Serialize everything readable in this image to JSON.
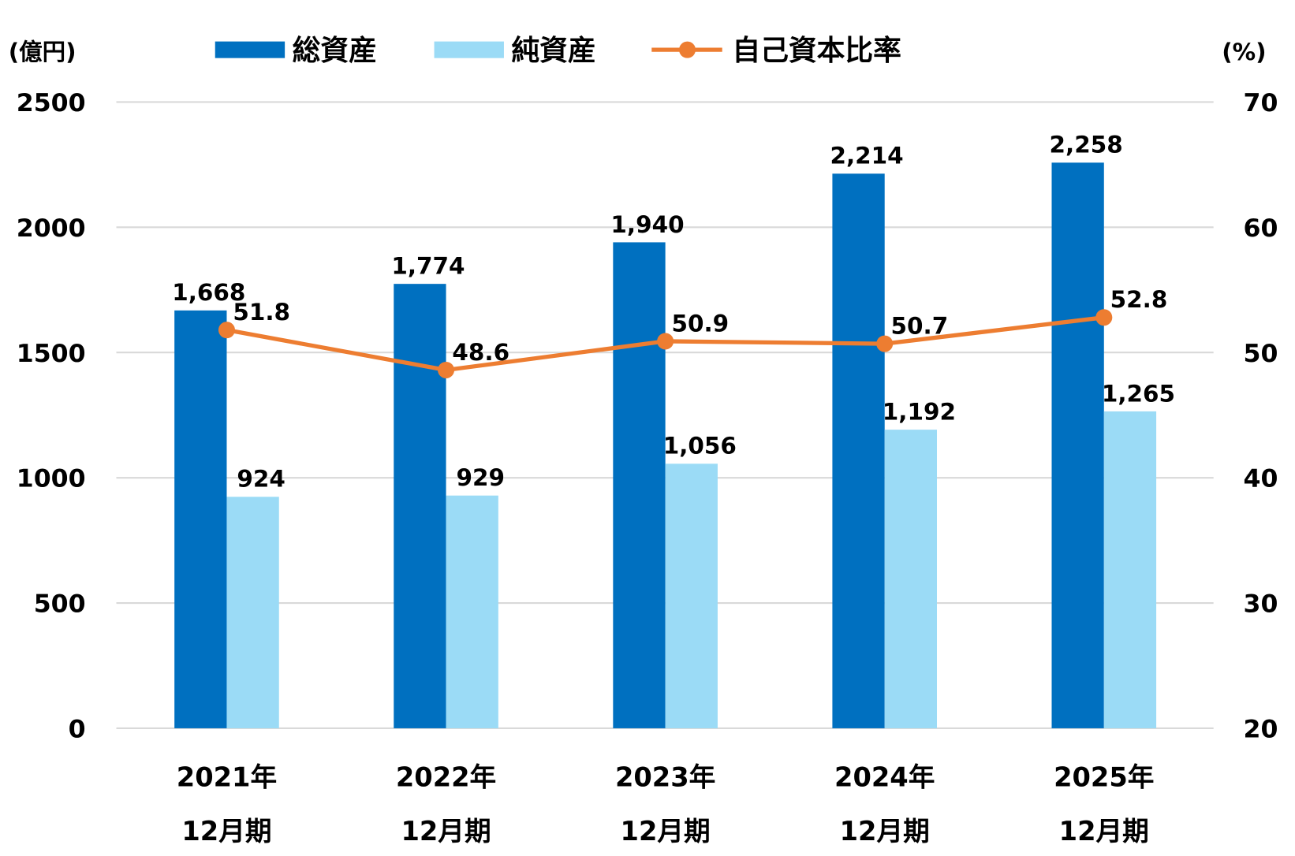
{
  "chart_data": {
    "type": "bar",
    "title": "",
    "categories": [
      [
        "2021年",
        "12月期"
      ],
      [
        "2022年",
        "12月期"
      ],
      [
        "2023年",
        "12月期"
      ],
      [
        "2024年",
        "12月期"
      ],
      [
        "2025年",
        "12月期"
      ]
    ],
    "series": [
      {
        "name": "総資産",
        "type": "bar",
        "axis": "left",
        "color": "#0070C0",
        "values": [
          1668,
          1774,
          1940,
          2214,
          2258
        ],
        "labels": [
          "1,668",
          "1,774",
          "1,940",
          "2,214",
          "2,258"
        ]
      },
      {
        "name": "純資産",
        "type": "bar",
        "axis": "left",
        "color": "#9BDBF6",
        "values": [
          924,
          929,
          1056,
          1192,
          1265
        ],
        "labels": [
          "924",
          "929",
          "1,056",
          "1,192",
          "1,265"
        ]
      },
      {
        "name": "自己資本比率",
        "type": "line",
        "axis": "right",
        "color": "#ED7D31",
        "values": [
          51.8,
          48.6,
          50.9,
          50.7,
          52.8
        ],
        "labels": [
          "51.8",
          "48.6",
          "50.9",
          "50.7",
          "52.8"
        ]
      }
    ],
    "ylabel": "(億円)",
    "y2label": "(%)",
    "ylim": [
      0,
      2500
    ],
    "y2lim": [
      20,
      70
    ],
    "yticks": [
      "0",
      "500",
      "1000",
      "1500",
      "2000",
      "2500"
    ],
    "y2ticks": [
      "20",
      "30",
      "40",
      "50",
      "60",
      "70"
    ],
    "grid": true,
    "legend": "top"
  }
}
